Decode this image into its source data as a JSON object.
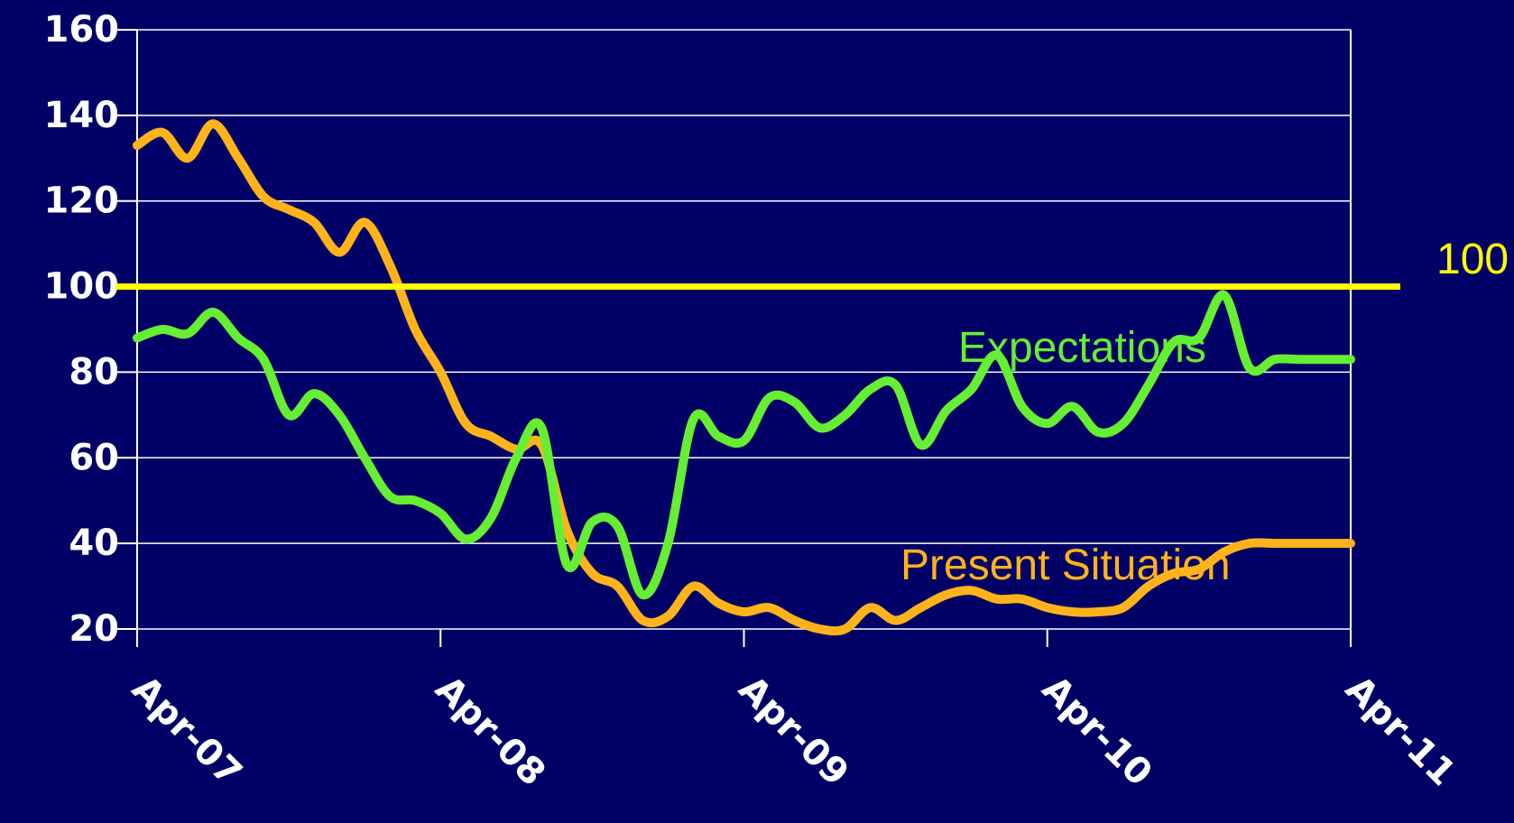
{
  "chart_data": {
    "type": "line",
    "x_ticks": [
      "Apr-07",
      "Apr-08",
      "Apr-09",
      "Apr-10",
      "Apr-11"
    ],
    "y_ticks": [
      20,
      40,
      60,
      80,
      100,
      120,
      140,
      160
    ],
    "ylim": [
      20,
      160
    ],
    "xlim": [
      "2007-04",
      "2011-04"
    ],
    "grid": true,
    "reference_line": {
      "value": 100,
      "label": "100",
      "color": "#ffff00"
    },
    "colors": {
      "background": "#000066",
      "grid": "#ffffff",
      "axis": "#ffffff",
      "ticks": "#ffffff"
    },
    "series": [
      {
        "name": "Expectations",
        "color": "#66ee33",
        "x": [
          "2007-04",
          "2007-05",
          "2007-06",
          "2007-07",
          "2007-08",
          "2007-09",
          "2007-10",
          "2007-11",
          "2007-12",
          "2008-01",
          "2008-02",
          "2008-03",
          "2008-04",
          "2008-05",
          "2008-06",
          "2008-07",
          "2008-08",
          "2008-09",
          "2008-10",
          "2008-11",
          "2008-12",
          "2009-01",
          "2009-02",
          "2009-03",
          "2009-04",
          "2009-05",
          "2009-06",
          "2009-07",
          "2009-08",
          "2009-09",
          "2009-10",
          "2009-11",
          "2009-12",
          "2010-01",
          "2010-02",
          "2010-03",
          "2010-04",
          "2010-05",
          "2010-06",
          "2010-07",
          "2010-08",
          "2010-09",
          "2010-10",
          "2010-11",
          "2010-12",
          "2011-01",
          "2011-02",
          "2011-03",
          "2011-04"
        ],
        "values": [
          88,
          90,
          89,
          94,
          88,
          83,
          70,
          75,
          70,
          60,
          51,
          50,
          47,
          41,
          46,
          60,
          67,
          35,
          45,
          44,
          28,
          40,
          69,
          65,
          64,
          74,
          73,
          67,
          70,
          76,
          77,
          63,
          71,
          76,
          84,
          72,
          68,
          72,
          66,
          68,
          77,
          87,
          88,
          98,
          81,
          83,
          83,
          83,
          83
        ]
      },
      {
        "name": "Present Situation",
        "color": "#ffb31a",
        "x": [
          "2007-04",
          "2007-05",
          "2007-06",
          "2007-07",
          "2007-08",
          "2007-09",
          "2007-10",
          "2007-11",
          "2007-12",
          "2008-01",
          "2008-02",
          "2008-03",
          "2008-04",
          "2008-05",
          "2008-06",
          "2008-07",
          "2008-08",
          "2008-09",
          "2008-10",
          "2008-11",
          "2008-12",
          "2009-01",
          "2009-02",
          "2009-03",
          "2009-04",
          "2009-05",
          "2009-06",
          "2009-07",
          "2009-08",
          "2009-09",
          "2009-10",
          "2009-11",
          "2009-12",
          "2010-01",
          "2010-02",
          "2010-03",
          "2010-04",
          "2010-05",
          "2010-06",
          "2010-07",
          "2010-08",
          "2010-09",
          "2010-10",
          "2010-11",
          "2010-12",
          "2011-01",
          "2011-02",
          "2011-03",
          "2011-04"
        ],
        "values": [
          133,
          136,
          130,
          138,
          130,
          121,
          118,
          115,
          108,
          115,
          105,
          90,
          80,
          68,
          65,
          62,
          63,
          43,
          33,
          30,
          22,
          23,
          30,
          26,
          24,
          25,
          22,
          20,
          20,
          25,
          22,
          25,
          28,
          29,
          27,
          27,
          25,
          24,
          24,
          25,
          30,
          33,
          34,
          38,
          40,
          40,
          40,
          40,
          40
        ]
      }
    ]
  }
}
